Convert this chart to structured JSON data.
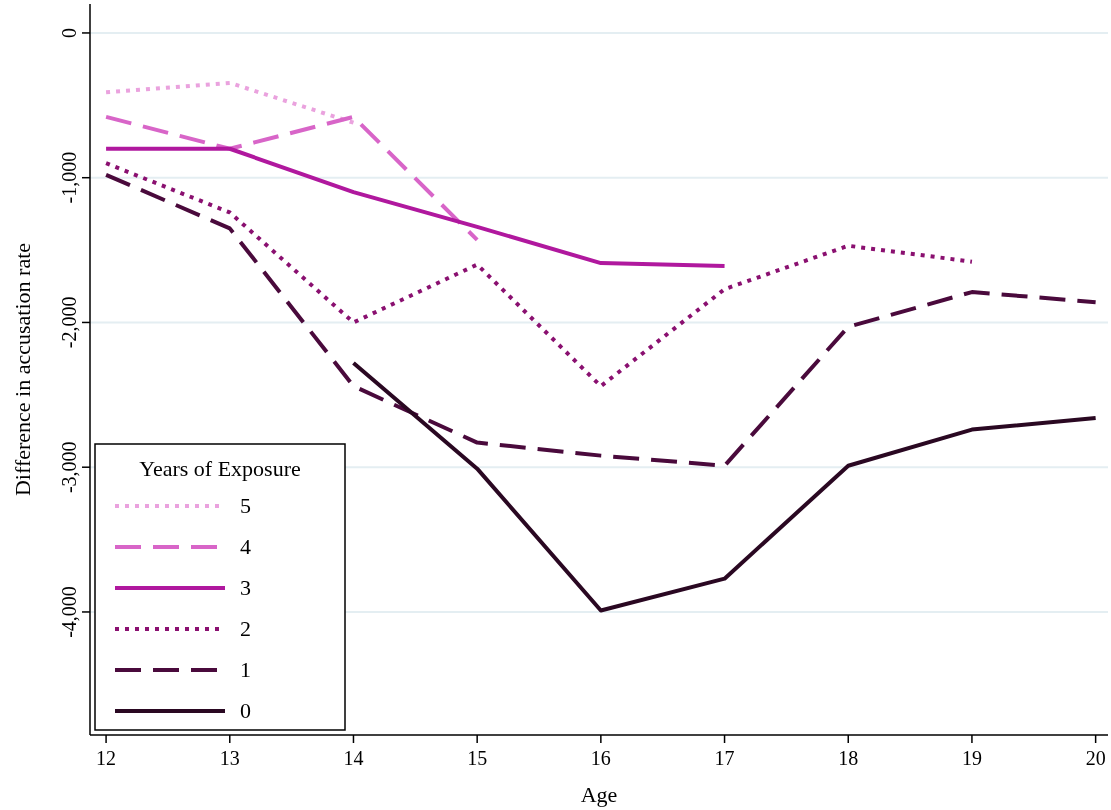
{
  "chart_data": {
    "type": "line",
    "xlabel": "Age",
    "ylabel": "Difference in accusation rate",
    "legend_title": "Years of Exposure",
    "legend": "bottom left",
    "grid": "y",
    "xlim": [
      11.87,
      20.1
    ],
    "xticks": [
      12,
      13,
      14,
      15,
      16,
      17,
      18,
      19,
      20
    ],
    "ylim": [
      -4850,
      200
    ],
    "yticks": [
      0,
      {
        "value": -1000,
        "label": "-1,000"
      },
      {
        "value": -2000,
        "label": "-2,000"
      },
      {
        "value": -3000,
        "label": "-3,000"
      },
      {
        "value": -4000,
        "label": "-4,000"
      }
    ],
    "series": [
      {
        "name": "5",
        "color": "#eaa2de",
        "line_style": "dotted",
        "x": [
          12,
          13,
          14
        ],
        "values": [
          -410,
          -345,
          -620
        ]
      },
      {
        "name": "4",
        "color": "#d865c8",
        "line_style": "dashed",
        "x": [
          12,
          13,
          14,
          15
        ],
        "values": [
          -580,
          -800,
          -580,
          -1430
        ]
      },
      {
        "name": "3",
        "color": "#b0189e",
        "line_style": "solid",
        "x": [
          12,
          13,
          14,
          15,
          16,
          17
        ],
        "values": [
          -800,
          -800,
          -1100,
          -1340,
          -1590,
          -1610
        ]
      },
      {
        "name": "2",
        "color": "#8a1070",
        "line_style": "dotted",
        "x": [
          12,
          13,
          14,
          15,
          16,
          17,
          18,
          19
        ],
        "values": [
          -900,
          -1240,
          -2000,
          -1600,
          -2440,
          -1770,
          -1470,
          -1580
        ]
      },
      {
        "name": "1",
        "color": "#4a0a3c",
        "line_style": "dashed",
        "x": [
          12,
          13,
          14,
          15,
          16,
          17,
          18,
          19,
          20
        ],
        "values": [
          -980,
          -1350,
          -2440,
          -2830,
          -2920,
          -2990,
          -2030,
          -1790,
          -1860
        ]
      },
      {
        "name": "0",
        "color": "#2a0822",
        "line_style": "solid",
        "x": [
          14,
          15,
          16,
          17,
          18,
          19,
          20
        ],
        "values": [
          -2280,
          -3010,
          -3990,
          -3770,
          -2990,
          -2740,
          -2660
        ]
      }
    ]
  }
}
